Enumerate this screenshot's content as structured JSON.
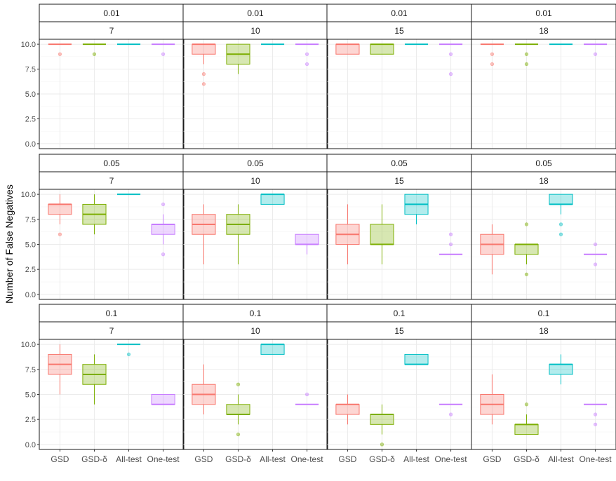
{
  "chart_data": {
    "type": "box",
    "ylabel": "Number of False Negatives",
    "xlabel": "",
    "categories": [
      "GSD",
      "GSD-δ",
      "All-test",
      "One-test"
    ],
    "colors": {
      "GSD": "#F8766D",
      "GSD-δ": "#7CAE00",
      "All-test": "#00BFC4",
      "One-test": "#C77CFF"
    },
    "ylim": [
      -0.5,
      10.5
    ],
    "yticks": [
      0.0,
      2.5,
      5.0,
      7.5,
      10.0
    ],
    "ytick_labels": [
      "0.0",
      "2.5",
      "5.0",
      "7.5",
      "10.0"
    ],
    "grid": true,
    "facet_rows": [
      "0.01",
      "0.05",
      "0.1"
    ],
    "facet_cols": [
      "7",
      "10",
      "15",
      "18"
    ],
    "panels": [
      {
        "row": "0.01",
        "col": "7",
        "boxes": [
          {
            "q1": 10,
            "median": 10,
            "q3": 10,
            "whislo": 10,
            "whishi": 10,
            "outliers": [
              9
            ]
          },
          {
            "q1": 10,
            "median": 10,
            "q3": 10,
            "whislo": 10,
            "whishi": 10,
            "outliers": [
              9
            ]
          },
          {
            "q1": 10,
            "median": 10,
            "q3": 10,
            "whislo": 10,
            "whishi": 10,
            "outliers": []
          },
          {
            "q1": 10,
            "median": 10,
            "q3": 10,
            "whislo": 10,
            "whishi": 10,
            "outliers": [
              9
            ]
          }
        ]
      },
      {
        "row": "0.01",
        "col": "10",
        "boxes": [
          {
            "q1": 9,
            "median": 10,
            "q3": 10,
            "whislo": 8,
            "whishi": 10,
            "outliers": [
              7,
              6
            ]
          },
          {
            "q1": 8,
            "median": 9,
            "q3": 10,
            "whislo": 7,
            "whishi": 10,
            "outliers": []
          },
          {
            "q1": 10,
            "median": 10,
            "q3": 10,
            "whislo": 10,
            "whishi": 10,
            "outliers": []
          },
          {
            "q1": 10,
            "median": 10,
            "q3": 10,
            "whislo": 10,
            "whishi": 10,
            "outliers": [
              9,
              8
            ]
          }
        ]
      },
      {
        "row": "0.01",
        "col": "15",
        "boxes": [
          {
            "q1": 9,
            "median": 10,
            "q3": 10,
            "whislo": 9,
            "whishi": 10,
            "outliers": []
          },
          {
            "q1": 9,
            "median": 10,
            "q3": 10,
            "whislo": 9,
            "whishi": 10,
            "outliers": []
          },
          {
            "q1": 10,
            "median": 10,
            "q3": 10,
            "whislo": 10,
            "whishi": 10,
            "outliers": []
          },
          {
            "q1": 10,
            "median": 10,
            "q3": 10,
            "whislo": 10,
            "whishi": 10,
            "outliers": [
              9,
              7
            ]
          }
        ]
      },
      {
        "row": "0.01",
        "col": "18",
        "boxes": [
          {
            "q1": 10,
            "median": 10,
            "q3": 10,
            "whislo": 10,
            "whishi": 10,
            "outliers": [
              9,
              8
            ]
          },
          {
            "q1": 10,
            "median": 10,
            "q3": 10,
            "whislo": 10,
            "whishi": 10,
            "outliers": [
              9,
              8
            ]
          },
          {
            "q1": 10,
            "median": 10,
            "q3": 10,
            "whislo": 10,
            "whishi": 10,
            "outliers": []
          },
          {
            "q1": 10,
            "median": 10,
            "q3": 10,
            "whislo": 10,
            "whishi": 10,
            "outliers": [
              9
            ]
          }
        ]
      },
      {
        "row": "0.05",
        "col": "7",
        "boxes": [
          {
            "q1": 8,
            "median": 9,
            "q3": 9,
            "whislo": 7,
            "whishi": 10,
            "outliers": [
              6
            ]
          },
          {
            "q1": 7,
            "median": 8,
            "q3": 9,
            "whislo": 6,
            "whishi": 10,
            "outliers": []
          },
          {
            "q1": 10,
            "median": 10,
            "q3": 10,
            "whislo": 10,
            "whishi": 10,
            "outliers": []
          },
          {
            "q1": 6,
            "median": 7,
            "q3": 7,
            "whislo": 5,
            "whishi": 8,
            "outliers": [
              9,
              4
            ]
          }
        ]
      },
      {
        "row": "0.05",
        "col": "10",
        "boxes": [
          {
            "q1": 6,
            "median": 7,
            "q3": 8,
            "whislo": 3,
            "whishi": 9,
            "outliers": []
          },
          {
            "q1": 6,
            "median": 7,
            "q3": 8,
            "whislo": 3,
            "whishi": 9,
            "outliers": []
          },
          {
            "q1": 9,
            "median": 10,
            "q3": 10,
            "whislo": 9,
            "whishi": 10,
            "outliers": []
          },
          {
            "q1": 5,
            "median": 5,
            "q3": 6,
            "whislo": 4,
            "whishi": 6,
            "outliers": []
          }
        ]
      },
      {
        "row": "0.05",
        "col": "15",
        "boxes": [
          {
            "q1": 5,
            "median": 6,
            "q3": 7,
            "whislo": 3,
            "whishi": 9,
            "outliers": []
          },
          {
            "q1": 5,
            "median": 5,
            "q3": 7,
            "whislo": 3,
            "whishi": 9,
            "outliers": []
          },
          {
            "q1": 8,
            "median": 9,
            "q3": 10,
            "whislo": 7,
            "whishi": 10,
            "outliers": []
          },
          {
            "q1": 4,
            "median": 4,
            "q3": 4,
            "whislo": 4,
            "whishi": 4,
            "outliers": [
              6,
              5
            ]
          }
        ]
      },
      {
        "row": "0.05",
        "col": "18",
        "boxes": [
          {
            "q1": 4,
            "median": 5,
            "q3": 6,
            "whislo": 2,
            "whishi": 7,
            "outliers": []
          },
          {
            "q1": 4,
            "median": 5,
            "q3": 5,
            "whislo": 3,
            "whishi": 5,
            "outliers": [
              7,
              2
            ]
          },
          {
            "q1": 9,
            "median": 9,
            "q3": 10,
            "whislo": 8,
            "whishi": 10,
            "outliers": [
              7,
              6
            ]
          },
          {
            "q1": 4,
            "median": 4,
            "q3": 4,
            "whislo": 4,
            "whishi": 4,
            "outliers": [
              5,
              3
            ]
          }
        ]
      },
      {
        "row": "0.1",
        "col": "7",
        "boxes": [
          {
            "q1": 7,
            "median": 8,
            "q3": 9,
            "whislo": 5,
            "whishi": 10,
            "outliers": []
          },
          {
            "q1": 6,
            "median": 7,
            "q3": 8,
            "whislo": 4,
            "whishi": 9,
            "outliers": []
          },
          {
            "q1": 10,
            "median": 10,
            "q3": 10,
            "whislo": 10,
            "whishi": 10,
            "outliers": [
              9
            ]
          },
          {
            "q1": 4,
            "median": 4,
            "q3": 5,
            "whislo": 4,
            "whishi": 5,
            "outliers": []
          }
        ]
      },
      {
        "row": "0.1",
        "col": "10",
        "boxes": [
          {
            "q1": 4,
            "median": 5,
            "q3": 6,
            "whislo": 3,
            "whishi": 8,
            "outliers": []
          },
          {
            "q1": 3,
            "median": 3,
            "q3": 4,
            "whislo": 2,
            "whishi": 5,
            "outliers": [
              6,
              1
            ]
          },
          {
            "q1": 9,
            "median": 10,
            "q3": 10,
            "whislo": 9,
            "whishi": 10,
            "outliers": []
          },
          {
            "q1": 4,
            "median": 4,
            "q3": 4,
            "whislo": 4,
            "whishi": 4,
            "outliers": [
              5
            ]
          }
        ]
      },
      {
        "row": "0.1",
        "col": "15",
        "boxes": [
          {
            "q1": 3,
            "median": 4,
            "q3": 4,
            "whislo": 2,
            "whishi": 5,
            "outliers": []
          },
          {
            "q1": 2,
            "median": 3,
            "q3": 3,
            "whislo": 1,
            "whishi": 4,
            "outliers": [
              0
            ]
          },
          {
            "q1": 8,
            "median": 8,
            "q3": 9,
            "whislo": 8,
            "whishi": 9,
            "outliers": []
          },
          {
            "q1": 4,
            "median": 4,
            "q3": 4,
            "whislo": 4,
            "whishi": 4,
            "outliers": [
              3
            ]
          }
        ]
      },
      {
        "row": "0.1",
        "col": "18",
        "boxes": [
          {
            "q1": 3,
            "median": 4,
            "q3": 5,
            "whislo": 2,
            "whishi": 7,
            "outliers": []
          },
          {
            "q1": 1,
            "median": 2,
            "q3": 2,
            "whislo": 1,
            "whishi": 3,
            "outliers": [
              4
            ]
          },
          {
            "q1": 7,
            "median": 8,
            "q3": 8,
            "whislo": 6,
            "whishi": 9,
            "outliers": []
          },
          {
            "q1": 4,
            "median": 4,
            "q3": 4,
            "whislo": 4,
            "whishi": 4,
            "outliers": [
              3,
              2
            ]
          }
        ]
      }
    ]
  }
}
